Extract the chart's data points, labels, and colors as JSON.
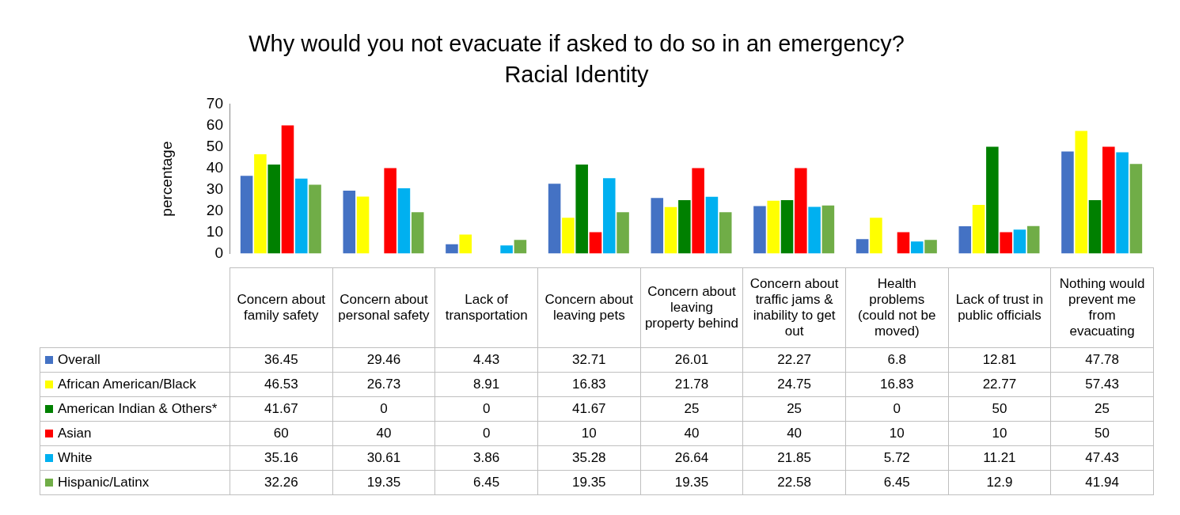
{
  "chart_data": {
    "type": "bar",
    "title": "Why would you not evacuate if asked to do so in an emergency?",
    "subtitle": "Racial Identity",
    "ylabel": "percentage",
    "categories": [
      "Concern about family safety",
      "Concern about personal safety",
      "Lack of transportation",
      "Concern about leaving pets",
      "Concern about leaving property behind",
      "Concern about traffic jams & inability to get out",
      "Health problems (could not be moved)",
      "Lack of trust in public officials",
      "Nothing would prevent me from evacuating"
    ],
    "series": [
      {
        "name": "Overall",
        "color": "#4472c4",
        "values": [
          36.45,
          29.46,
          4.43,
          32.71,
          26.01,
          22.27,
          6.8,
          12.81,
          47.78
        ]
      },
      {
        "name": "African American/Black",
        "color": "#ffff00",
        "values": [
          46.53,
          26.73,
          8.91,
          16.83,
          21.78,
          24.75,
          16.83,
          22.77,
          57.43
        ]
      },
      {
        "name": "American Indian & Others*",
        "color": "#008000",
        "values": [
          41.67,
          0,
          0,
          41.67,
          25,
          25,
          0,
          50,
          25
        ]
      },
      {
        "name": "Asian",
        "color": "#ff0000",
        "values": [
          60,
          40,
          0,
          10,
          40,
          40,
          10,
          10,
          50
        ]
      },
      {
        "name": "White",
        "color": "#00b0f0",
        "values": [
          35.16,
          30.61,
          3.86,
          35.28,
          26.64,
          21.85,
          5.72,
          11.21,
          47.43
        ]
      },
      {
        "name": "Hispanic/Latinx",
        "color": "#70ad47",
        "values": [
          32.26,
          19.35,
          6.45,
          19.35,
          19.35,
          22.58,
          6.45,
          12.9,
          41.94
        ]
      }
    ],
    "ylim": [
      0,
      70
    ],
    "yticks": [
      0,
      10,
      20,
      30,
      40,
      50,
      60,
      70
    ],
    "grid": false,
    "legend": "bottom",
    "data_labels": true
  }
}
